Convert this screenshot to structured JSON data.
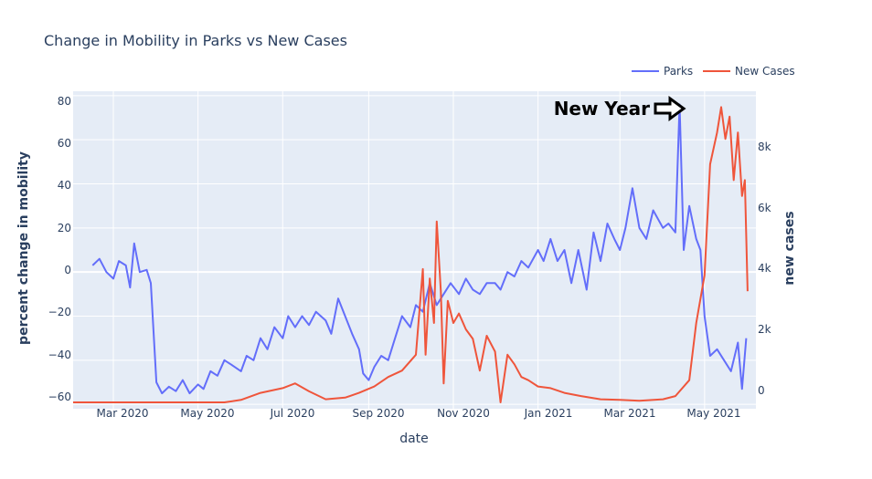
{
  "chart_data": {
    "type": "line",
    "title": "Change in Mobility in Parks vs New Cases",
    "xlabel": "date",
    "ylabel": "percent change in mobility",
    "y2label": "new cases",
    "x_ticks": [
      "Mar 2020",
      "May 2020",
      "Jul 2020",
      "Sep 2020",
      "Nov 2020",
      "Jan 2021",
      "Mar 2021",
      "May 2021"
    ],
    "y_ticks": [
      "80",
      "60",
      "40",
      "20",
      "0",
      "−20",
      "−40",
      "−60"
    ],
    "y2_ticks": [
      "8k",
      "6k",
      "4k",
      "2k",
      "0"
    ],
    "ylim": [
      -62,
      82
    ],
    "y2lim": [
      -200,
      9800
    ],
    "xlim": [
      "2020-02-01",
      "2021-06-07"
    ],
    "grid": true,
    "legend_position": "top-right",
    "annotation": {
      "text": "New Year",
      "date": "2021-04-13",
      "value": 76
    },
    "series": [
      {
        "name": "Parks",
        "axis": "y",
        "color": "#636efa",
        "points": [
          [
            "2020-02-15",
            3
          ],
          [
            "2020-02-20",
            6
          ],
          [
            "2020-02-25",
            0
          ],
          [
            "2020-03-01",
            -3
          ],
          [
            "2020-03-05",
            5
          ],
          [
            "2020-03-10",
            3
          ],
          [
            "2020-03-13",
            -7
          ],
          [
            "2020-03-16",
            13
          ],
          [
            "2020-03-20",
            0
          ],
          [
            "2020-03-25",
            1
          ],
          [
            "2020-03-28",
            -5
          ],
          [
            "2020-04-01",
            -50
          ],
          [
            "2020-04-05",
            -55
          ],
          [
            "2020-04-10",
            -52
          ],
          [
            "2020-04-15",
            -54
          ],
          [
            "2020-04-20",
            -49
          ],
          [
            "2020-04-25",
            -55
          ],
          [
            "2020-05-01",
            -51
          ],
          [
            "2020-05-05",
            -53
          ],
          [
            "2020-05-10",
            -45
          ],
          [
            "2020-05-15",
            -47
          ],
          [
            "2020-05-20",
            -40
          ],
          [
            "2020-05-25",
            -42
          ],
          [
            "2020-06-01",
            -45
          ],
          [
            "2020-06-05",
            -38
          ],
          [
            "2020-06-10",
            -40
          ],
          [
            "2020-06-15",
            -30
          ],
          [
            "2020-06-20",
            -35
          ],
          [
            "2020-06-25",
            -25
          ],
          [
            "2020-07-01",
            -30
          ],
          [
            "2020-07-05",
            -20
          ],
          [
            "2020-07-10",
            -25
          ],
          [
            "2020-07-15",
            -20
          ],
          [
            "2020-07-20",
            -24
          ],
          [
            "2020-07-25",
            -18
          ],
          [
            "2020-08-01",
            -22
          ],
          [
            "2020-08-05",
            -28
          ],
          [
            "2020-08-10",
            -12
          ],
          [
            "2020-08-15",
            -20
          ],
          [
            "2020-08-20",
            -28
          ],
          [
            "2020-08-25",
            -35
          ],
          [
            "2020-08-28",
            -46
          ],
          [
            "2020-09-01",
            -49
          ],
          [
            "2020-09-05",
            -43
          ],
          [
            "2020-09-10",
            -38
          ],
          [
            "2020-09-15",
            -40
          ],
          [
            "2020-09-20",
            -30
          ],
          [
            "2020-09-25",
            -20
          ],
          [
            "2020-10-01",
            -25
          ],
          [
            "2020-10-05",
            -15
          ],
          [
            "2020-10-10",
            -18
          ],
          [
            "2020-10-15",
            -5
          ],
          [
            "2020-10-20",
            -15
          ],
          [
            "2020-10-25",
            -10
          ],
          [
            "2020-10-30",
            -5
          ],
          [
            "2020-11-05",
            -10
          ],
          [
            "2020-11-10",
            -3
          ],
          [
            "2020-11-15",
            -8
          ],
          [
            "2020-11-20",
            -10
          ],
          [
            "2020-11-25",
            -5
          ],
          [
            "2020-12-01",
            -5
          ],
          [
            "2020-12-05",
            -8
          ],
          [
            "2020-12-10",
            0
          ],
          [
            "2020-12-15",
            -2
          ],
          [
            "2020-12-20",
            5
          ],
          [
            "2020-12-25",
            2
          ],
          [
            "2021-01-01",
            10
          ],
          [
            "2021-01-05",
            5
          ],
          [
            "2021-01-10",
            15
          ],
          [
            "2021-01-15",
            5
          ],
          [
            "2021-01-20",
            10
          ],
          [
            "2021-01-25",
            -5
          ],
          [
            "2021-01-30",
            10
          ],
          [
            "2021-02-05",
            -8
          ],
          [
            "2021-02-10",
            18
          ],
          [
            "2021-02-15",
            5
          ],
          [
            "2021-02-20",
            22
          ],
          [
            "2021-02-25",
            15
          ],
          [
            "2021-03-01",
            10
          ],
          [
            "2021-03-05",
            20
          ],
          [
            "2021-03-10",
            38
          ],
          [
            "2021-03-15",
            20
          ],
          [
            "2021-03-20",
            15
          ],
          [
            "2021-03-25",
            28
          ],
          [
            "2021-04-01",
            20
          ],
          [
            "2021-04-05",
            22
          ],
          [
            "2021-04-10",
            18
          ],
          [
            "2021-04-13",
            76
          ],
          [
            "2021-04-16",
            10
          ],
          [
            "2021-04-20",
            30
          ],
          [
            "2021-04-25",
            15
          ],
          [
            "2021-04-28",
            10
          ],
          [
            "2021-05-01",
            -20
          ],
          [
            "2021-05-05",
            -38
          ],
          [
            "2021-05-10",
            -35
          ],
          [
            "2021-05-15",
            -40
          ],
          [
            "2021-05-20",
            -45
          ],
          [
            "2021-05-25",
            -32
          ],
          [
            "2021-05-28",
            -53
          ],
          [
            "2021-05-31",
            -30
          ]
        ]
      },
      {
        "name": "New Cases",
        "axis": "y2",
        "color": "#ef553b",
        "points": [
          [
            "2020-02-01",
            0
          ],
          [
            "2020-04-01",
            0
          ],
          [
            "2020-05-01",
            0
          ],
          [
            "2020-05-20",
            0
          ],
          [
            "2020-06-01",
            80
          ],
          [
            "2020-06-15",
            300
          ],
          [
            "2020-07-01",
            450
          ],
          [
            "2020-07-10",
            600
          ],
          [
            "2020-07-20",
            350
          ],
          [
            "2020-08-01",
            100
          ],
          [
            "2020-08-15",
            150
          ],
          [
            "2020-08-25",
            300
          ],
          [
            "2020-09-05",
            500
          ],
          [
            "2020-09-15",
            800
          ],
          [
            "2020-09-25",
            1000
          ],
          [
            "2020-10-01",
            1300
          ],
          [
            "2020-10-05",
            1500
          ],
          [
            "2020-10-10",
            4200
          ],
          [
            "2020-10-12",
            1500
          ],
          [
            "2020-10-15",
            3900
          ],
          [
            "2020-10-18",
            2500
          ],
          [
            "2020-10-20",
            5700
          ],
          [
            "2020-10-23",
            3500
          ],
          [
            "2020-10-25",
            600
          ],
          [
            "2020-10-28",
            3200
          ],
          [
            "2020-11-01",
            2500
          ],
          [
            "2020-11-05",
            2800
          ],
          [
            "2020-11-10",
            2300
          ],
          [
            "2020-11-15",
            2000
          ],
          [
            "2020-11-20",
            1000
          ],
          [
            "2020-11-25",
            2100
          ],
          [
            "2020-12-01",
            1600
          ],
          [
            "2020-12-05",
            0
          ],
          [
            "2020-12-10",
            1500
          ],
          [
            "2020-12-15",
            1200
          ],
          [
            "2020-12-20",
            800
          ],
          [
            "2020-12-25",
            700
          ],
          [
            "2021-01-01",
            500
          ],
          [
            "2021-01-10",
            450
          ],
          [
            "2021-01-20",
            300
          ],
          [
            "2021-02-01",
            200
          ],
          [
            "2021-02-15",
            100
          ],
          [
            "2021-03-01",
            80
          ],
          [
            "2021-03-15",
            50
          ],
          [
            "2021-04-01",
            100
          ],
          [
            "2021-04-10",
            200
          ],
          [
            "2021-04-20",
            700
          ],
          [
            "2021-04-25",
            2500
          ],
          [
            "2021-05-01",
            4000
          ],
          [
            "2021-05-05",
            7500
          ],
          [
            "2021-05-10",
            8500
          ],
          [
            "2021-05-13",
            9300
          ],
          [
            "2021-05-16",
            8300
          ],
          [
            "2021-05-19",
            9000
          ],
          [
            "2021-05-22",
            7000
          ],
          [
            "2021-05-25",
            8500
          ],
          [
            "2021-05-28",
            6500
          ],
          [
            "2021-05-30",
            7000
          ],
          [
            "2021-06-01",
            3500
          ]
        ]
      }
    ]
  }
}
